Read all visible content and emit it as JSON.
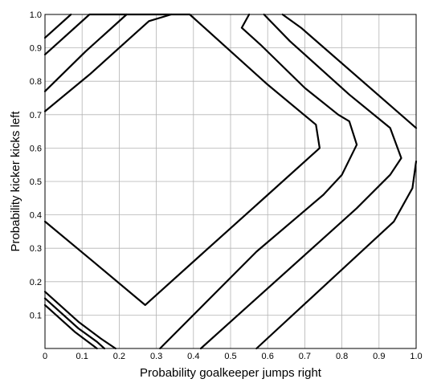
{
  "chart_data": {
    "type": "line",
    "xlabel": "Probability goalkeeper jumps right",
    "ylabel": "Probability kicker kicks left",
    "xlim": [
      0,
      1
    ],
    "ylim": [
      0,
      1
    ],
    "grid": true,
    "x_ticks": [
      "0",
      "0.1",
      "0.2",
      "0.3",
      "0.4",
      "0.5",
      "0.6",
      "0.7",
      "0.8",
      "0.9",
      "1.0"
    ],
    "y_ticks": [
      "0.1",
      "0.2",
      "0.3",
      "0.4",
      "0.5",
      "0.6",
      "0.7",
      "0.8",
      "0.9",
      "1.0"
    ],
    "series": [
      {
        "points": [
          [
            0.0,
            0.38
          ],
          [
            0.13,
            0.26
          ],
          [
            0.27,
            0.13
          ],
          [
            0.42,
            0.28
          ],
          [
            0.58,
            0.44
          ],
          [
            0.74,
            0.6
          ],
          [
            0.73,
            0.67
          ],
          [
            0.6,
            0.79
          ],
          [
            0.51,
            0.88
          ],
          [
            0.39,
            1.0
          ],
          [
            0.12,
            1.0
          ],
          [
            0.03,
            0.91
          ],
          [
            0.0,
            0.88
          ]
        ]
      },
      {
        "points": [
          [
            0.0,
            0.71
          ],
          [
            0.12,
            0.82
          ],
          [
            0.23,
            0.93
          ],
          [
            0.28,
            0.98
          ],
          [
            0.34,
            1.0
          ]
        ]
      },
      {
        "points": [
          [
            0.0,
            0.77
          ],
          [
            0.11,
            0.89
          ],
          [
            0.22,
            1.0
          ]
        ]
      },
      {
        "points": [
          [
            0.0,
            0.93
          ],
          [
            0.07,
            1.0
          ]
        ]
      },
      {
        "points": [
          [
            0.0,
            0.17
          ],
          [
            0.09,
            0.08
          ],
          [
            0.15,
            0.03
          ],
          [
            0.19,
            0.0
          ]
        ]
      },
      {
        "points": [
          [
            0.0,
            0.15
          ],
          [
            0.09,
            0.06
          ],
          [
            0.14,
            0.02
          ],
          [
            0.16,
            0.0
          ]
        ]
      },
      {
        "points": [
          [
            0.0,
            0.13
          ],
          [
            0.08,
            0.05
          ],
          [
            0.14,
            0.0
          ]
        ]
      },
      {
        "points": [
          [
            0.31,
            0.0
          ],
          [
            0.57,
            0.29
          ],
          [
            0.75,
            0.46
          ],
          [
            0.8,
            0.52
          ],
          [
            0.84,
            0.61
          ],
          [
            0.82,
            0.68
          ],
          [
            0.79,
            0.7
          ],
          [
            0.7,
            0.78
          ],
          [
            0.58,
            0.91
          ],
          [
            0.53,
            0.96
          ],
          [
            0.55,
            1.0
          ]
        ]
      },
      {
        "points": [
          [
            0.42,
            0.0
          ],
          [
            0.74,
            0.32
          ],
          [
            0.84,
            0.42
          ],
          [
            0.93,
            0.52
          ],
          [
            0.96,
            0.57
          ],
          [
            0.93,
            0.66
          ],
          [
            0.82,
            0.76
          ],
          [
            0.66,
            0.92
          ],
          [
            0.59,
            1.0
          ]
        ]
      },
      {
        "points": [
          [
            0.57,
            0.0
          ],
          [
            0.94,
            0.38
          ],
          [
            0.99,
            0.48
          ],
          [
            1.0,
            0.56
          ]
        ]
      },
      {
        "points": [
          [
            0.64,
            1.0
          ],
          [
            0.69,
            0.96
          ],
          [
            1.0,
            0.66
          ]
        ]
      }
    ]
  }
}
